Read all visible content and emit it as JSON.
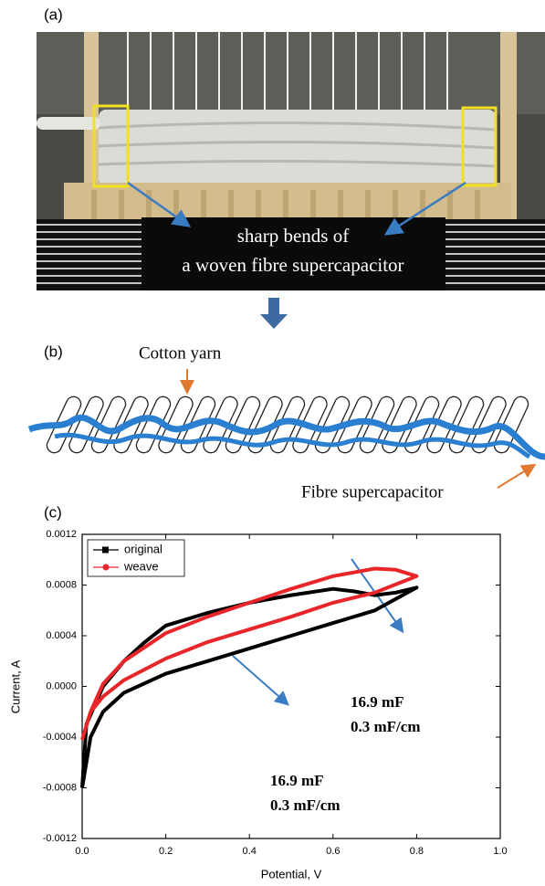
{
  "panel_a": {
    "label": "(a)",
    "caption_line1": "sharp bends of",
    "caption_line2": "a woven fibre supercapacitor"
  },
  "panel_b": {
    "label": "(b)",
    "top_label": "Cotton yarn",
    "bottom_label": "Fibre supercapacitor"
  },
  "chart_data": {
    "type": "line",
    "panel_label": "(c)",
    "xlabel": "Potential, V",
    "ylabel": "Current, A",
    "xlim": [
      0,
      1.0
    ],
    "ylim": [
      -0.0012,
      0.0012
    ],
    "xticks": [
      {
        "value": 0,
        "label": "0.0"
      },
      0.2,
      0.4,
      0.6,
      0.8,
      {
        "value": 1.0,
        "label": "1.0"
      }
    ],
    "yticks": [
      -0.0012,
      -0.0008,
      -0.0004,
      {
        "value": 0,
        "label": "0.0000"
      },
      0.0004,
      0.0008,
      0.0012
    ],
    "legend": "upper left",
    "series": [
      {
        "name": "original",
        "color": "#000000",
        "marker": "square",
        "x": [
          0,
          0.01,
          0.05,
          0.1,
          0.15,
          0.2,
          0.3,
          0.4,
          0.5,
          0.6,
          0.65,
          0.7,
          0.75,
          0.8,
          0.7,
          0.6,
          0.5,
          0.4,
          0.3,
          0.2,
          0.1,
          0.05,
          0.02,
          0
        ],
        "values": [
          -0.0008,
          -0.0003,
          0.0,
          0.0002,
          0.00035,
          0.00048,
          0.00058,
          0.00066,
          0.00072,
          0.00077,
          0.00075,
          0.00072,
          0.00074,
          0.00078,
          0.0006,
          0.0005,
          0.0004,
          0.0003,
          0.0002,
          0.0001,
          -5e-05,
          -0.0002,
          -0.0004,
          -0.0008
        ]
      },
      {
        "name": "weave",
        "color": "#e8262a",
        "marker": "circle",
        "x": [
          0,
          0.02,
          0.05,
          0.1,
          0.2,
          0.3,
          0.4,
          0.5,
          0.6,
          0.7,
          0.75,
          0.8,
          0.7,
          0.6,
          0.5,
          0.4,
          0.3,
          0.2,
          0.1,
          0.05,
          0.02,
          0
        ],
        "values": [
          -0.00042,
          -0.0002,
          2e-05,
          0.0002,
          0.00042,
          0.00055,
          0.00066,
          0.00077,
          0.00087,
          0.00093,
          0.00092,
          0.00087,
          0.00074,
          0.00066,
          0.00055,
          0.00045,
          0.00035,
          0.00022,
          5e-05,
          -8e-05,
          -0.0002,
          -0.00042
        ]
      }
    ],
    "annotations": [
      {
        "line1": "16.9 mF",
        "line2": "0.3 mF/cm"
      },
      {
        "line1": "16.9 mF",
        "line2": "0.3 mF/cm"
      }
    ]
  }
}
